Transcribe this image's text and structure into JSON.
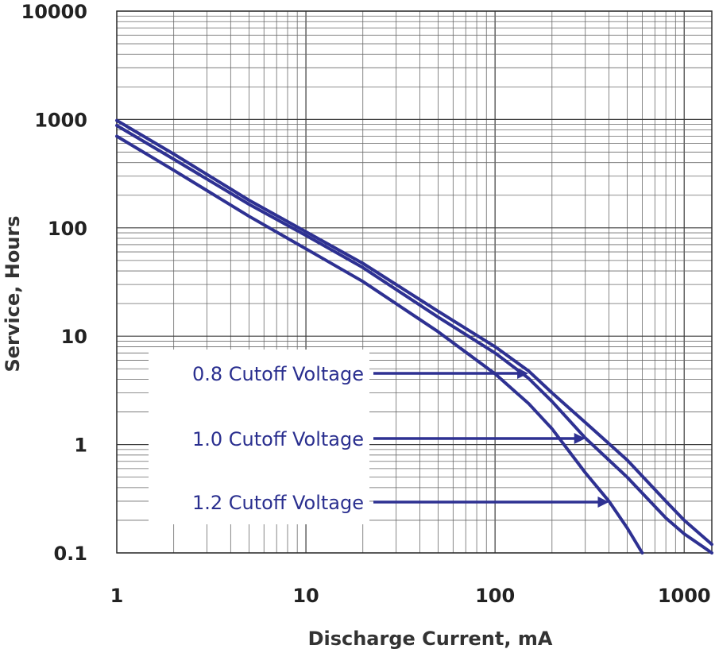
{
  "chart_data": {
    "type": "line",
    "xlabel": "Discharge Current, mA",
    "ylabel": "Service, Hours",
    "xscale": "log",
    "yscale": "log",
    "xlim": [
      1,
      1400
    ],
    "ylim": [
      0.1,
      10000
    ],
    "grid": true,
    "x_ticks": [
      1,
      10,
      100,
      1000
    ],
    "x_tick_labels": [
      "1",
      "10",
      "100",
      "1000"
    ],
    "y_ticks": [
      0.1,
      1,
      10,
      100,
      1000,
      10000
    ],
    "y_tick_labels": [
      "0.1",
      "1",
      "10",
      "100",
      "1000",
      "10000"
    ],
    "colors": {
      "series": "#2e3192",
      "grid": "#3a3a3a",
      "background": "#ffffff"
    },
    "series": [
      {
        "name": "0.8 Cutoff Voltage",
        "x": [
          1,
          2,
          5,
          10,
          20,
          50,
          100,
          150,
          200,
          300,
          500,
          800,
          1000,
          1400
        ],
        "y": [
          980,
          480,
          180,
          92,
          47,
          17,
          8,
          4.8,
          3,
          1.6,
          0.72,
          0.3,
          0.2,
          0.12
        ]
      },
      {
        "name": "1.0 Cutoff Voltage",
        "x": [
          1,
          2,
          5,
          10,
          20,
          50,
          100,
          150,
          200,
          300,
          500,
          800,
          1000,
          1400
        ],
        "y": [
          880,
          430,
          165,
          85,
          43,
          15,
          7,
          4.1,
          2.5,
          1.15,
          0.5,
          0.21,
          0.15,
          0.1
        ]
      },
      {
        "name": "1.2 Cutoff Voltage",
        "x": [
          1,
          2,
          5,
          10,
          20,
          50,
          100,
          150,
          200,
          300,
          400,
          500,
          600
        ],
        "y": [
          700,
          340,
          128,
          64,
          32,
          11,
          4.5,
          2.4,
          1.4,
          0.55,
          0.3,
          0.17,
          0.1
        ]
      }
    ],
    "annotations": [
      {
        "text": "0.8 Cutoff Voltage",
        "points_to": {
          "x": 150,
          "y": 4.8
        }
      },
      {
        "text": "1.0 Cutoff Voltage",
        "points_to": {
          "x": 300,
          "y": 1.15
        }
      },
      {
        "text": "1.2 Cutoff Voltage",
        "points_to": {
          "x": 400,
          "y": 0.3
        }
      }
    ]
  }
}
